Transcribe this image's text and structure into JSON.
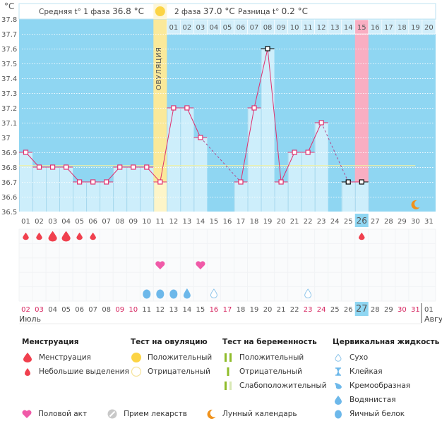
{
  "header": {
    "unit_label": "°C",
    "phase1_label": "Средняя t° 1 фаза",
    "phase1_value": "36.8 °C",
    "phase2_label": "2 фаза",
    "phase2_value": "37.0 °C",
    "diff_label": "Разница t°",
    "diff_value": "0.2 °C",
    "ovulation_label": "ОВУЛЯЦИЯ"
  },
  "colors": {
    "plot_bg": "#8fd6f2",
    "bar_fill": "#cdeefb",
    "line": "#e0306e",
    "ovulation_band": "#fae99a",
    "ovulation_bar": "#fdf5c8",
    "period_band": "#f9aec2",
    "mean_line": "#f2f0a0",
    "highlight_cell": "#8fd6f2",
    "menstruation": "#f0404e",
    "intercourse": "#f05aa8",
    "cervical": "#6db8ea",
    "weekend": "#d6245f",
    "moon": "#f0921c",
    "pregnancy_test": "#8fbc2a"
  },
  "chart_data": {
    "type": "bar",
    "title": "",
    "ylabel": "°C",
    "ylim": [
      36.5,
      37.8
    ],
    "yticks": [
      "37.8",
      "37.7",
      "37.6",
      "37.5",
      "37.4",
      "37.3",
      "37.2",
      "37.1",
      "37",
      "36.9",
      "36.8",
      "36.7",
      "36.6",
      "36.5"
    ],
    "cycle_days": [
      "01",
      "02",
      "03",
      "04",
      "05",
      "06",
      "07",
      "08",
      "09",
      "10",
      "11",
      "12",
      "13",
      "14",
      "15",
      "16",
      "17",
      "18",
      "19",
      "20",
      "21",
      "22",
      "23",
      "24",
      "25",
      "26",
      "27",
      "28",
      "29",
      "30",
      "31"
    ],
    "luteal_days": [
      "01",
      "02",
      "03",
      "04",
      "05",
      "06",
      "07",
      "08",
      "09",
      "10",
      "11",
      "12",
      "13",
      "14",
      "15",
      "16",
      "17",
      "18",
      "19",
      "20"
    ],
    "temperatures": [
      36.9,
      36.8,
      36.8,
      36.8,
      36.7,
      36.7,
      36.7,
      36.8,
      36.8,
      36.8,
      36.7,
      37.2,
      37.2,
      37.0,
      null,
      null,
      36.7,
      37.2,
      37.6,
      36.7,
      36.9,
      36.9,
      37.1,
      null,
      36.7,
      36.7,
      null,
      null,
      null,
      null,
      null
    ],
    "flagged_points": [
      19,
      25,
      26
    ],
    "ovulation_day": 11,
    "period_day": 26,
    "today_cycle_day": 26,
    "mean_line_value": 36.8,
    "moon_day": 30,
    "menstruation": [
      {
        "day": 1,
        "size": "small"
      },
      {
        "day": 2,
        "size": "small"
      },
      {
        "day": 3,
        "size": "large"
      },
      {
        "day": 4,
        "size": "large"
      },
      {
        "day": 5,
        "size": "small"
      },
      {
        "day": 6,
        "size": "small"
      },
      {
        "day": 26,
        "size": "small"
      }
    ],
    "intercourse_days": [
      11,
      14
    ],
    "cervical_fluid": [
      {
        "day": 10,
        "type": "egg_white"
      },
      {
        "day": 11,
        "type": "egg_white"
      },
      {
        "day": 12,
        "type": "egg_white"
      },
      {
        "day": 13,
        "type": "watery"
      },
      {
        "day": 15,
        "type": "dry"
      },
      {
        "day": 22,
        "type": "dry"
      }
    ],
    "calendar_dates": [
      "02",
      "03",
      "04",
      "05",
      "06",
      "07",
      "08",
      "09",
      "10",
      "11",
      "12",
      "13",
      "14",
      "15",
      "16",
      "17",
      "18",
      "19",
      "20",
      "21",
      "22",
      "23",
      "24",
      "25",
      "26",
      "27",
      "28",
      "29",
      "30",
      "31",
      "01"
    ],
    "weekend_dates_index": [
      0,
      1,
      7,
      8,
      14,
      15,
      21,
      22,
      28,
      29
    ],
    "today_calendar_index": 25,
    "month_start": "Июль",
    "month_next": "Авгу"
  },
  "legend": {
    "menstruation": {
      "title": "Менструация",
      "items": [
        "Менструация",
        "Небольшие выделения"
      ]
    },
    "ovulation_test": {
      "title": "Тест на овуляцию",
      "items": [
        "Положительный",
        "Отрицательный"
      ]
    },
    "pregnancy_test": {
      "title": "Тест на беременность",
      "items": [
        "Положительный",
        "Отрицательный",
        "Слабоположительный"
      ]
    },
    "cervical_fluid": {
      "title": "Цервикальная жидкость",
      "items": [
        "Сухо",
        "Клейкая",
        "Кремообразная",
        "Водянистая",
        "Яичный белок"
      ]
    },
    "other": {
      "intercourse": "Половой акт",
      "medication": "Прием лекарств",
      "moon": "Лунный календарь"
    }
  }
}
